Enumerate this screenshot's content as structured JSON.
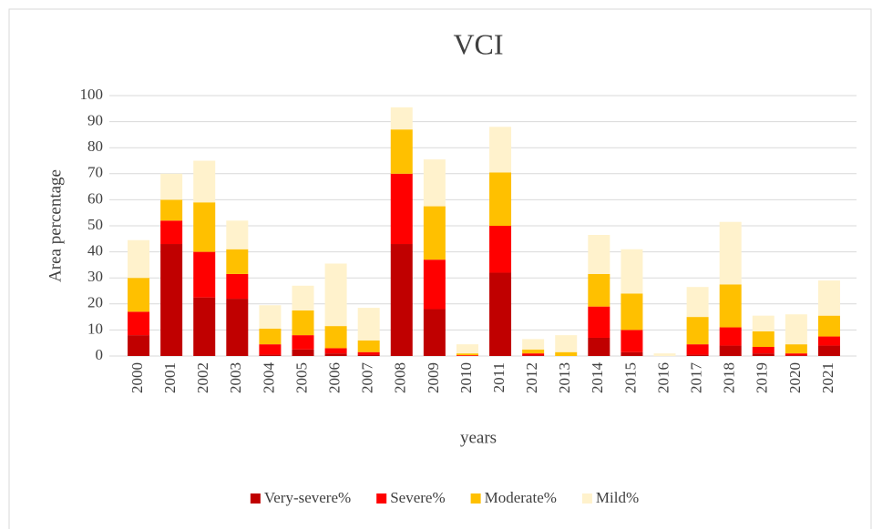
{
  "chart_data": {
    "type": "stacked_bar",
    "title": "VCI",
    "x_label": "years",
    "y_label": "Area percentage",
    "categories": [
      "2000",
      "2001",
      "2002",
      "2003",
      "2004",
      "2005",
      "2006",
      "2007",
      "2008",
      "2009",
      "2010",
      "2011",
      "2012",
      "2013",
      "2014",
      "2015",
      "2016",
      "2017",
      "2018",
      "2019",
      "2020",
      "2021"
    ],
    "series": [
      {
        "name": "Very-severe%",
        "color": "#c00000",
        "values": [
          8,
          43,
          22.5,
          22,
          0.5,
          2.5,
          1,
          0.5,
          43,
          18,
          0,
          32,
          0.3,
          0,
          7,
          1.5,
          0,
          0.5,
          4,
          1,
          0.3,
          4
        ]
      },
      {
        "name": "Severe%",
        "color": "#ff0000",
        "values": [
          9,
          9,
          17.5,
          9.5,
          4,
          5.5,
          2,
          1,
          27,
          19,
          0.3,
          18,
          0.7,
          0,
          12,
          8.5,
          0,
          4,
          7,
          2.5,
          0.7,
          3.5
        ]
      },
      {
        "name": "Moderate%",
        "color": "#ffc000",
        "values": [
          13,
          8,
          19,
          9.5,
          6,
          9.5,
          8.5,
          4.5,
          17,
          20.5,
          0.7,
          20.5,
          1.5,
          1.5,
          12.5,
          14,
          0,
          10.5,
          16.5,
          6,
          3.5,
          8
        ]
      },
      {
        "name": "Mild%",
        "color": "#fff2cc",
        "values": [
          14.5,
          10,
          16,
          11,
          9,
          9.5,
          24,
          12.5,
          8.5,
          18,
          3.5,
          17.5,
          4,
          6.5,
          15,
          17,
          1,
          11.5,
          24,
          6,
          11.5,
          13.5
        ]
      }
    ],
    "ylim": [
      0,
      100
    ],
    "yticks": [
      0,
      10,
      20,
      30,
      40,
      50,
      60,
      70,
      80,
      90,
      100
    ],
    "grid": true,
    "legend": "bottom"
  }
}
